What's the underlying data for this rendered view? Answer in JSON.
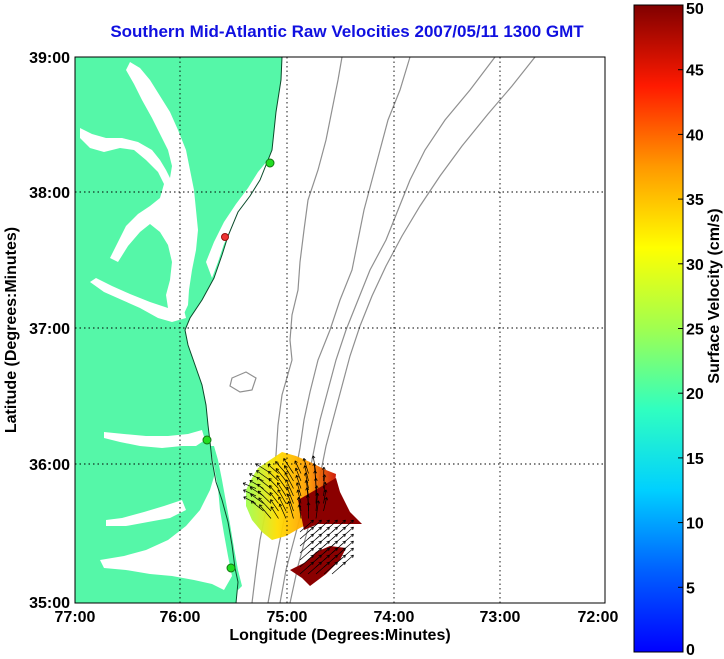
{
  "title": "Southern Mid-Atlantic Raw Velocities 2007/05/11 1300 GMT",
  "x_axis": {
    "label": "Longitude (Degrees:Minutes)",
    "ticks": [
      "77:00",
      "76:00",
      "75:00",
      "74:00",
      "73:00",
      "72:00"
    ]
  },
  "y_axis": {
    "label": "Latitude (Degrees:Minutes)",
    "ticks": [
      "39:00",
      "38:00",
      "37:00",
      "36:00",
      "35:00"
    ]
  },
  "colorbar": {
    "label": "Surface Velocity (cm/s)",
    "min": 0,
    "max": 50,
    "ticks": [
      "0",
      "5",
      "10",
      "15",
      "20",
      "25",
      "30",
      "35",
      "40",
      "45",
      "50"
    ]
  },
  "colors": {
    "land": "#55f7a8",
    "water": "#ffffff",
    "bathymetry": "#909090",
    "title": "#1010e0",
    "high_velocity": "#8b0000"
  },
  "stations": [
    {
      "color": "#22dd22"
    },
    {
      "color": "#ee3333"
    },
    {
      "color": "#22dd22"
    },
    {
      "color": "#22dd22"
    }
  ]
}
